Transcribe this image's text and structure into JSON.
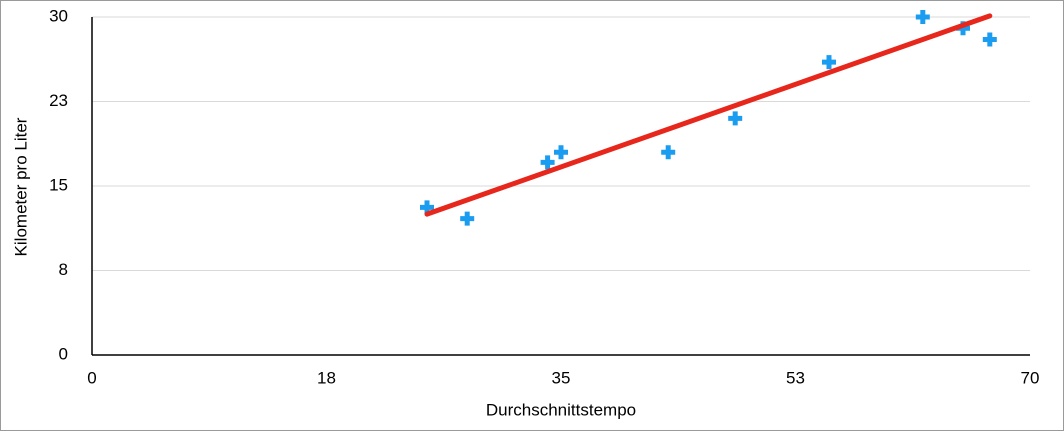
{
  "chart_data": {
    "type": "scatter",
    "xlabel": "Durchschnittstempo",
    "ylabel": "Kilometer pro Liter",
    "series": [
      {
        "color": "#1a9cf0",
        "x": [
          25,
          28,
          34,
          35,
          43,
          48,
          55,
          62,
          65,
          67
        ],
        "values": [
          13.1,
          12.1,
          17.1,
          18,
          18,
          21,
          26,
          30,
          29,
          28
        ]
      }
    ],
    "trendline": {
      "color": "#e8271c",
      "x": [
        25,
        67
      ],
      "values": [
        12.5,
        30.1
      ]
    },
    "xlim": [
      0,
      70
    ],
    "xticks": [
      0,
      {
        "value": 17.5,
        "label": "18"
      },
      35,
      {
        "value": 52.5,
        "label": "53"
      },
      70
    ],
    "ylim": [
      0,
      30
    ],
    "yticks": [
      0,
      {
        "value": 7.5,
        "label": "8"
      },
      15,
      {
        "value": 22.5,
        "label": "23"
      },
      30
    ],
    "grid": true
  }
}
